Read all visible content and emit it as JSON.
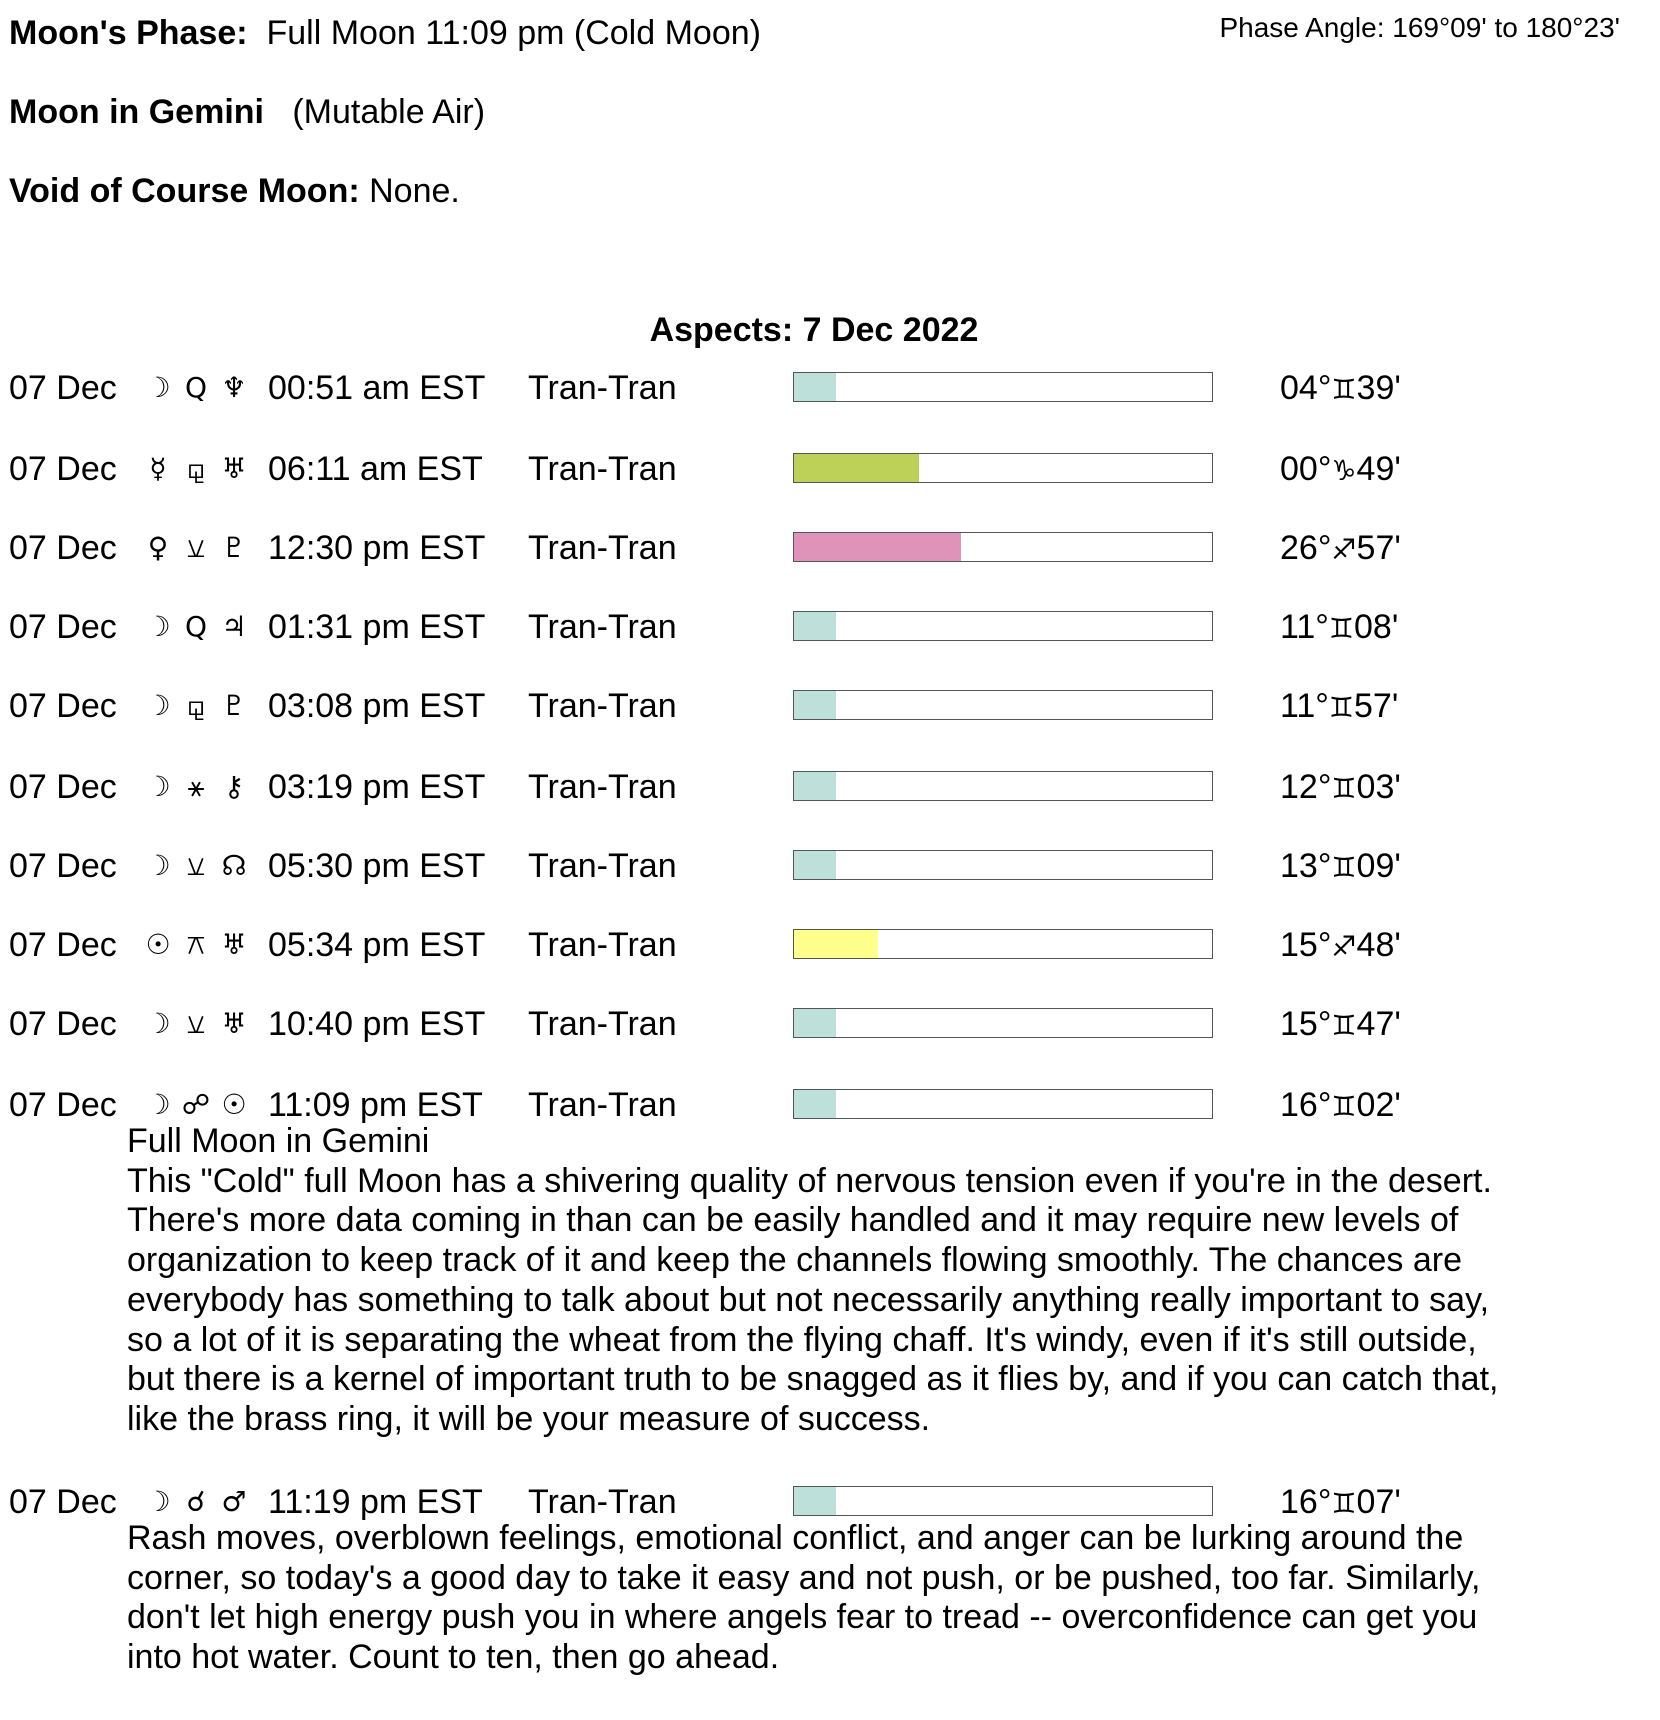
{
  "header": {
    "phase_label": "Moon's Phase:",
    "phase_value": "Full Moon 11:09 pm (Cold Moon)",
    "phase_angle": "Phase Angle:  169°09' to 180°23'",
    "moon_sign_label": "Moon in Gemini",
    "moon_sign_value": "(Mutable Air)",
    "void_label": "Void of Course Moon:",
    "void_value": "None."
  },
  "aspects_title": "Aspects: 7 Dec 2022",
  "colors": {
    "teal": "#bde0da",
    "green": "#bdd057",
    "pink": "#e093b8",
    "yellow": "#ffff8c"
  },
  "aspects": [
    {
      "date": "07 Dec",
      "p1": "☽",
      "aspect": "Q",
      "p2": "♆",
      "time": "00:51 am EST",
      "type": "Tran-Tran",
      "strength": 0.1,
      "color": "#bde0da",
      "deg": "04°",
      "sign": "♊",
      "min": "39'"
    },
    {
      "date": "07 Dec",
      "p1": "☿",
      "aspect": "⚼",
      "p2": "♅",
      "time": "06:11 am EST",
      "type": "Tran-Tran",
      "strength": 0.3,
      "color": "#bdd057",
      "deg": "00°",
      "sign": "♑",
      "min": "49'"
    },
    {
      "date": "07 Dec",
      "p1": "♀",
      "aspect": "⚺",
      "p2": "♇",
      "time": "12:30 pm EST",
      "type": "Tran-Tran",
      "strength": 0.4,
      "color": "#e093b8",
      "deg": "26°",
      "sign": "♐",
      "min": "57'"
    },
    {
      "date": "07 Dec",
      "p1": "☽",
      "aspect": "Q",
      "p2": "♃",
      "time": "01:31 pm EST",
      "type": "Tran-Tran",
      "strength": 0.1,
      "color": "#bde0da",
      "deg": "11°",
      "sign": "♊",
      "min": "08'"
    },
    {
      "date": "07 Dec",
      "p1": "☽",
      "aspect": "⚼",
      "p2": "♇",
      "time": "03:08 pm EST",
      "type": "Tran-Tran",
      "strength": 0.1,
      "color": "#bde0da",
      "deg": "11°",
      "sign": "♊",
      "min": "57'"
    },
    {
      "date": "07 Dec",
      "p1": "☽",
      "aspect": "⚹",
      "p2": "⚷",
      "time": "03:19 pm EST",
      "type": "Tran-Tran",
      "strength": 0.1,
      "color": "#bde0da",
      "deg": "12°",
      "sign": "♊",
      "min": "03'"
    },
    {
      "date": "07 Dec",
      "p1": "☽",
      "aspect": "⚺",
      "p2": "☊",
      "time": "05:30 pm EST",
      "type": "Tran-Tran",
      "strength": 0.1,
      "color": "#bde0da",
      "deg": "13°",
      "sign": "♊",
      "min": "09'"
    },
    {
      "date": "07 Dec",
      "p1": "☉",
      "aspect": "⚻",
      "p2": "♅",
      "time": "05:34 pm EST",
      "type": "Tran-Tran",
      "strength": 0.2,
      "color": "#ffff8c",
      "deg": "15°",
      "sign": "♐",
      "min": "48'"
    },
    {
      "date": "07 Dec",
      "p1": "☽",
      "aspect": "⚺",
      "p2": "♅",
      "time": "10:40 pm EST",
      "type": "Tran-Tran",
      "strength": 0.1,
      "color": "#bde0da",
      "deg": "15°",
      "sign": "♊",
      "min": "47'"
    },
    {
      "date": "07 Dec",
      "p1": "☽",
      "aspect": "☍",
      "p2": "☉",
      "time": "11:09 pm EST",
      "type": "Tran-Tran",
      "strength": 0.1,
      "color": "#bde0da",
      "deg": "16°",
      "sign": "♊",
      "min": "02'",
      "desc": [
        "Full Moon in Gemini",
        "This \"Cold\" full Moon has a shivering quality of nervous tension even if you're in the desert.",
        "There's more data coming in than can be easily handled and it may require new levels of",
        "organization to keep track of it and keep the channels flowing smoothly. The chances are",
        "everybody has something to talk about but not necessarily anything really important to say,",
        "so a lot of it is separating the wheat from the flying chaff. It's windy, even if it's still outside,",
        "but there is a kernel of important truth to be snagged as it flies by, and if you can catch that,",
        "like the brass ring, it will be your measure of success."
      ]
    },
    {
      "date": "07 Dec",
      "p1": "☽",
      "aspect": "☌",
      "p2": "♂",
      "time": "11:19 pm EST",
      "type": "Tran-Tran",
      "strength": 0.1,
      "color": "#bde0da",
      "deg": "16°",
      "sign": "♊",
      "min": "07'",
      "desc": [
        "Rash moves, overblown feelings, emotional conflict, and anger can be lurking around the",
        "corner, so today's a good day to take it easy and not push, or be pushed, too far. Similarly,",
        "don't let high energy push you in where angels fear to tread -- overconfidence can get you",
        "into hot water. Count to ten, then go ahead."
      ]
    }
  ]
}
